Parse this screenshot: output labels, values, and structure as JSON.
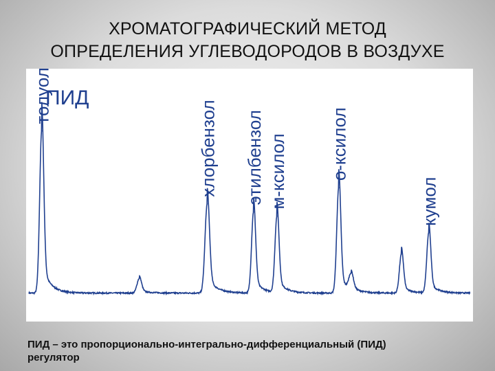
{
  "title": {
    "line1": "ХРОМАТОГРАФИЧЕСКИЙ МЕТОД",
    "line2": "ОПРЕДЕЛЕНИЯ УГЛЕВОДОРОДОВ В ВОЗДУХЕ"
  },
  "caption": {
    "line1": "ПИД – это пропорционально-интегрально-дифференциальный (ПИД)",
    "line2": "регулятор"
  },
  "chart_data": {
    "type": "line",
    "title": "ПИД",
    "xlabel": "",
    "ylabel": "",
    "grid": false,
    "line_color": "#1f3f8f",
    "baseline": 0.04,
    "ylim": [
      0,
      1
    ],
    "xlim": [
      0,
      100
    ],
    "peaks": [
      {
        "label": "толуол",
        "x": 2.9,
        "height": 1.0,
        "width": 0.45
      },
      {
        "label": "",
        "x": 25.0,
        "height": 0.09,
        "width": 0.5
      },
      {
        "label": "хлорбензол",
        "x": 40.4,
        "height": 0.55,
        "width": 0.5
      },
      {
        "label": "этилбензол",
        "x": 50.9,
        "height": 0.5,
        "width": 0.45
      },
      {
        "label": "м-ксилол",
        "x": 56.2,
        "height": 0.47,
        "width": 0.45
      },
      {
        "label": "о-ксилол",
        "x": 70.2,
        "height": 0.65,
        "width": 0.45
      },
      {
        "label": "",
        "x": 73.0,
        "height": 0.1,
        "width": 0.5
      },
      {
        "label": "",
        "x": 84.4,
        "height": 0.24,
        "width": 0.45
      },
      {
        "label": "кумол",
        "x": 90.6,
        "height": 0.37,
        "width": 0.45
      }
    ]
  }
}
